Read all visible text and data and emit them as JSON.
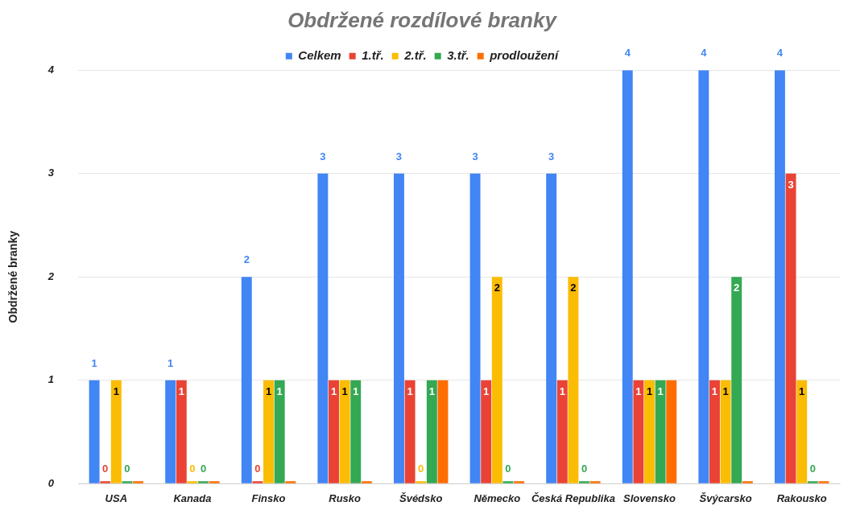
{
  "chart_data": {
    "type": "bar",
    "title": "Obdržené rozdílové branky",
    "ylabel": "Obdržené branky",
    "categories": [
      "USA",
      "Kanada",
      "Finsko",
      "Rusko",
      "Švédsko",
      "Německo",
      "Česká Republika",
      "Slovensko",
      "Švýcarsko",
      "Rakousko"
    ],
    "series": [
      {
        "name": "Celkem",
        "color": "#4285f4",
        "values": [
          1,
          1,
          2,
          3,
          3,
          3,
          3,
          4,
          4,
          4
        ],
        "value_labels": [
          "1",
          "1",
          "2",
          "3",
          "3",
          "3",
          "3",
          "4",
          "4",
          "4"
        ]
      },
      {
        "name": "1.tř.",
        "color": "#ea4335",
        "values": [
          0,
          1,
          0,
          1,
          1,
          1,
          1,
          1,
          1,
          3
        ],
        "value_labels": [
          "0",
          "1",
          "0",
          "1",
          "1",
          "1",
          "1",
          "1",
          "1",
          "3"
        ]
      },
      {
        "name": "2.tř.",
        "color": "#fbbc04",
        "values": [
          1,
          0,
          1,
          1,
          0,
          2,
          2,
          1,
          1,
          1
        ],
        "value_labels": [
          "1",
          "0",
          "1",
          "1",
          "0",
          "2",
          "2",
          "1",
          "1",
          "1"
        ]
      },
      {
        "name": "3.tř.",
        "color": "#34a853",
        "values": [
          0,
          0,
          1,
          1,
          1,
          0,
          0,
          1,
          2,
          0
        ],
        "value_labels": [
          "0",
          "0",
          "1",
          "1",
          "1",
          "0",
          "0",
          "1",
          "2",
          "0"
        ]
      },
      {
        "name": "prodloužení",
        "color": "#ff6d01",
        "values": [
          0,
          0,
          0,
          0,
          1,
          0,
          0,
          1,
          0,
          0
        ]
      }
    ],
    "ylim": [
      0,
      4
    ],
    "yticks": [
      0,
      1,
      2,
      3,
      4
    ],
    "grid": "y",
    "legend": "top"
  }
}
